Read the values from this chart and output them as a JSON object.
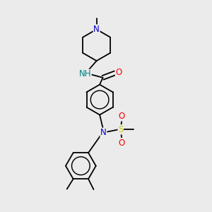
{
  "background_color": "#ebebeb",
  "bond_color": "#000000",
  "atom_colors": {
    "N": "#0000cc",
    "O": "#ff0000",
    "S": "#cccc00",
    "C": "#000000",
    "H": "#008080"
  },
  "font_size_atom": 8.5,
  "line_width": 1.3,
  "dbo": 0.012
}
